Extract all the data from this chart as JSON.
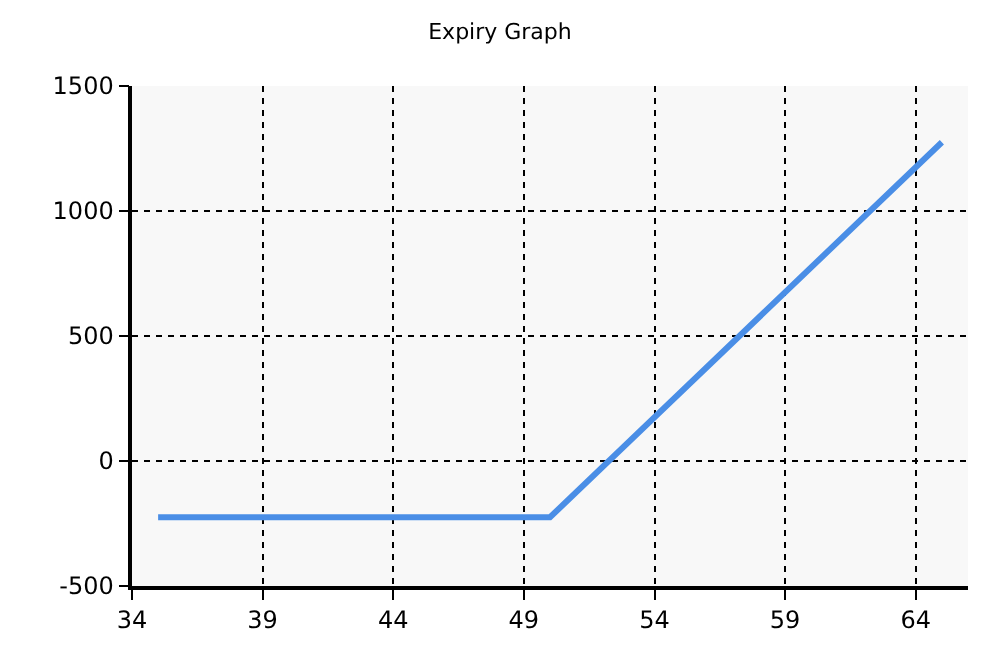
{
  "chart_data": {
    "type": "line",
    "title": "Expiry Graph",
    "x": [
      35,
      50,
      65
    ],
    "series": [
      {
        "color": "#4a8ee6",
        "values": [
          -225,
          -225,
          1275
        ]
      }
    ],
    "xlim": [
      34,
      66
    ],
    "xticks": [
      34,
      39,
      44,
      49,
      54,
      59,
      64
    ],
    "ylim": [
      -500,
      1500
    ],
    "yticks": [
      -500,
      0,
      500,
      1000,
      1500
    ],
    "grid": true,
    "marker": "none",
    "line_style": "solid"
  }
}
